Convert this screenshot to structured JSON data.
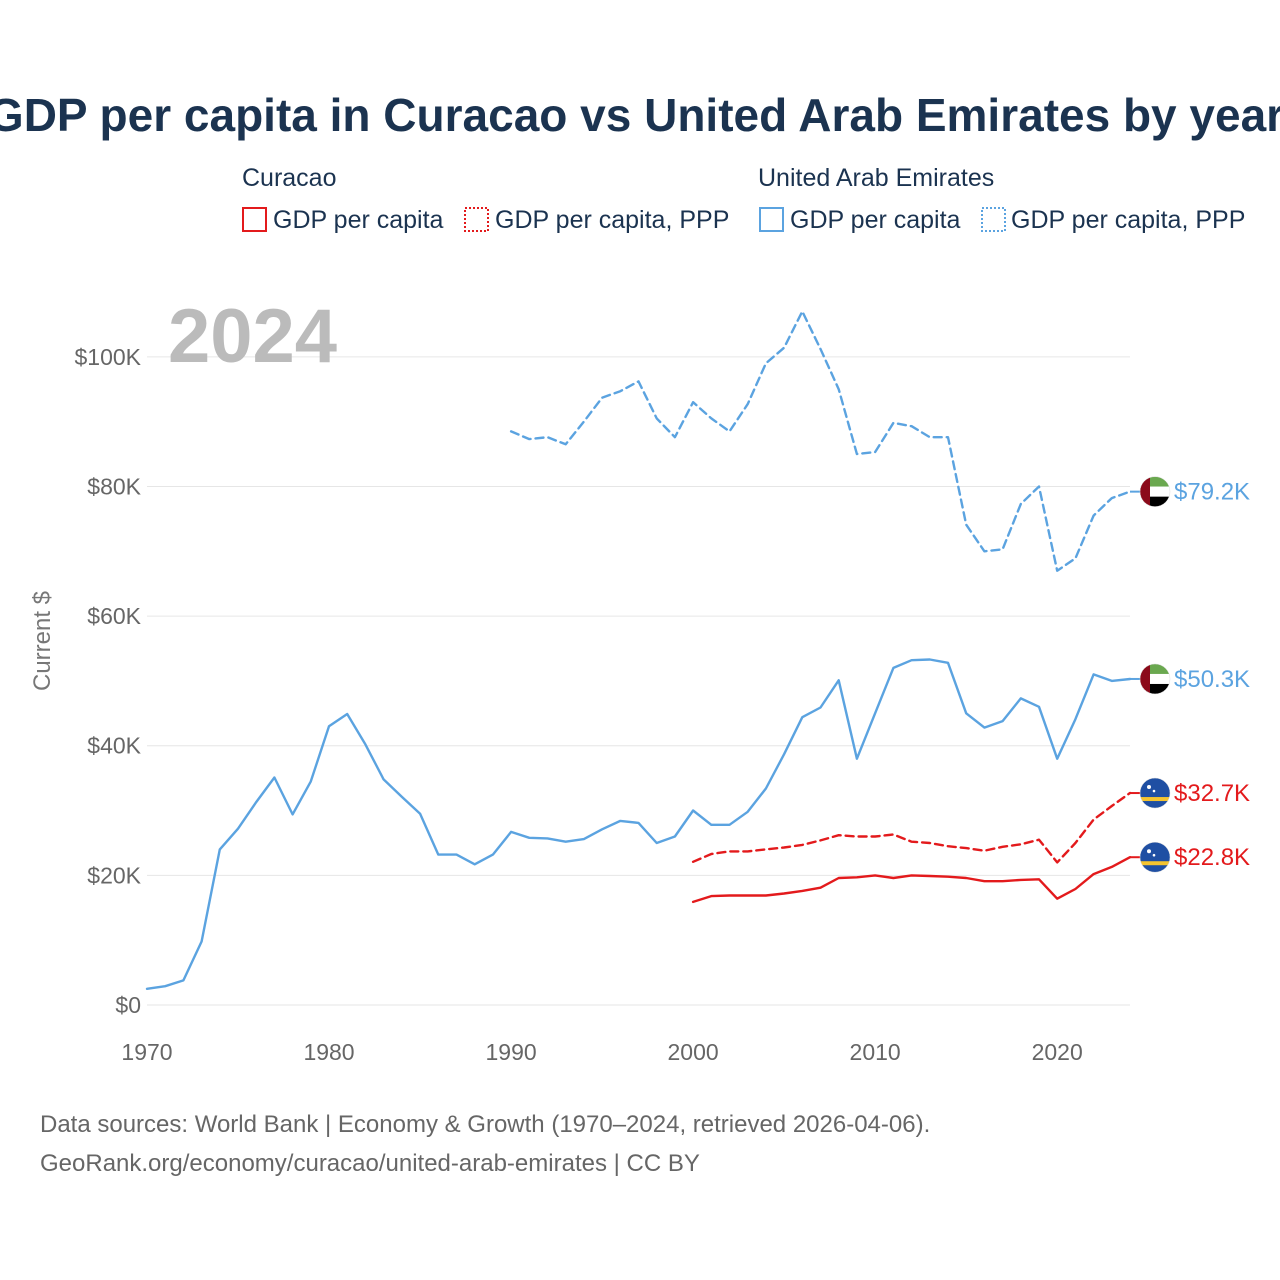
{
  "title": "GDP per capita in Curacao vs United Arab Emirates by year",
  "year_watermark": "2024",
  "legend": {
    "groups": [
      {
        "name": "Curacao",
        "color": "#e31a1c",
        "items": [
          {
            "label": "GDP per capita",
            "style": "solid"
          },
          {
            "label": "GDP per capita, PPP",
            "style": "dotted"
          }
        ]
      },
      {
        "name": "United Arab Emirates",
        "color": "#5ba3e0",
        "items": [
          {
            "label": "GDP per capita",
            "style": "solid"
          },
          {
            "label": "GDP per capita, PPP",
            "style": "dotted"
          }
        ]
      }
    ]
  },
  "footer": {
    "line1": "Data sources: World Bank | Economy & Growth (1970–2024, retrieved 2026-04-06).",
    "line2": "GeoRank.org/economy/curacao/united-arab-emirates | CC BY"
  },
  "chart_data": {
    "type": "line",
    "title": "GDP per capita in Curacao vs United Arab Emirates by year",
    "xlabel": "",
    "ylabel": "Current $",
    "xlim": [
      1970,
      2024
    ],
    "ylim": [
      0,
      110000
    ],
    "x_ticks": [
      1970,
      1980,
      1990,
      2000,
      2010,
      2020
    ],
    "x_tick_labels": [
      "1970",
      "1980",
      "1990",
      "2000",
      "2010",
      "2020"
    ],
    "y_ticks": [
      0,
      20000,
      40000,
      60000,
      80000,
      100000
    ],
    "y_tick_labels": [
      "$0",
      "$20K",
      "$40K",
      "$60K",
      "$80K",
      "$100K"
    ],
    "grid": true,
    "series": [
      {
        "name": "United Arab Emirates GDP per capita, PPP",
        "country": "United Arab Emirates",
        "color": "#5ba3e0",
        "dash": "dashed",
        "end_label": "$79.2K",
        "x": [
          1990,
          1991,
          1992,
          1993,
          1994,
          1995,
          1996,
          1997,
          1998,
          1999,
          2000,
          2001,
          2002,
          2003,
          2004,
          2005,
          2006,
          2007,
          2008,
          2009,
          2010,
          2011,
          2012,
          2013,
          2014,
          2015,
          2016,
          2017,
          2018,
          2019,
          2020,
          2021,
          2022,
          2023,
          2024
        ],
        "values": [
          88500,
          87300,
          87600,
          86500,
          90000,
          93700,
          94700,
          96200,
          90500,
          87600,
          93000,
          90500,
          88500,
          92700,
          99000,
          101400,
          107000,
          101200,
          95000,
          85000,
          85300,
          89800,
          89300,
          87600,
          87600,
          74100,
          70000,
          70300,
          77300,
          80000,
          67000,
          68900,
          75500,
          78200,
          79200
        ]
      },
      {
        "name": "United Arab Emirates GDP per capita",
        "country": "United Arab Emirates",
        "color": "#5ba3e0",
        "dash": "solid",
        "end_label": "$50.3K",
        "x": [
          1970,
          1971,
          1972,
          1973,
          1974,
          1975,
          1976,
          1977,
          1978,
          1979,
          1980,
          1981,
          1982,
          1983,
          1984,
          1985,
          1986,
          1987,
          1988,
          1989,
          1990,
          1991,
          1992,
          1993,
          1994,
          1995,
          1996,
          1997,
          1998,
          1999,
          2000,
          2001,
          2002,
          2003,
          2004,
          2005,
          2006,
          2007,
          2008,
          2009,
          2010,
          2011,
          2012,
          2013,
          2014,
          2015,
          2016,
          2017,
          2018,
          2019,
          2020,
          2021,
          2022,
          2023,
          2024
        ],
        "values": [
          2500,
          2900,
          3800,
          9800,
          24000,
          27200,
          31300,
          35100,
          29400,
          34500,
          43000,
          44900,
          40200,
          34800,
          32100,
          29500,
          23200,
          23200,
          21700,
          23200,
          26700,
          25800,
          25700,
          25200,
          25600,
          27100,
          28400,
          28100,
          25000,
          26000,
          30000,
          27800,
          27800,
          29800,
          33400,
          38700,
          44400,
          45900,
          50100,
          38000,
          45000,
          52000,
          53200,
          53300,
          52800,
          45000,
          42800,
          43800,
          47300,
          46000,
          38000,
          44100,
          51000,
          50000,
          50300
        ]
      },
      {
        "name": "Curacao GDP per capita, PPP",
        "country": "Curacao",
        "color": "#e31a1c",
        "dash": "dashed",
        "end_label": "$32.7K",
        "x": [
          2000,
          2001,
          2002,
          2003,
          2004,
          2005,
          2006,
          2007,
          2008,
          2009,
          2010,
          2011,
          2012,
          2013,
          2014,
          2015,
          2016,
          2017,
          2018,
          2019,
          2020,
          2021,
          2022,
          2023,
          2024
        ],
        "values": [
          22100,
          23300,
          23700,
          23700,
          24000,
          24300,
          24700,
          25400,
          26200,
          26000,
          26000,
          26300,
          25200,
          25000,
          24500,
          24200,
          23800,
          24400,
          24800,
          25500,
          22000,
          25000,
          28600,
          30700,
          32700
        ]
      },
      {
        "name": "Curacao GDP per capita",
        "country": "Curacao",
        "color": "#e31a1c",
        "dash": "solid",
        "end_label": "$22.8K",
        "x": [
          2000,
          2001,
          2002,
          2003,
          2004,
          2005,
          2006,
          2007,
          2008,
          2009,
          2010,
          2011,
          2012,
          2013,
          2014,
          2015,
          2016,
          2017,
          2018,
          2019,
          2020,
          2021,
          2022,
          2023,
          2024
        ],
        "values": [
          15900,
          16800,
          16900,
          16900,
          16900,
          17200,
          17600,
          18100,
          19600,
          19700,
          20000,
          19600,
          20000,
          19900,
          19800,
          19600,
          19100,
          19100,
          19300,
          19400,
          16400,
          17900,
          20200,
          21300,
          22800
        ]
      }
    ]
  }
}
